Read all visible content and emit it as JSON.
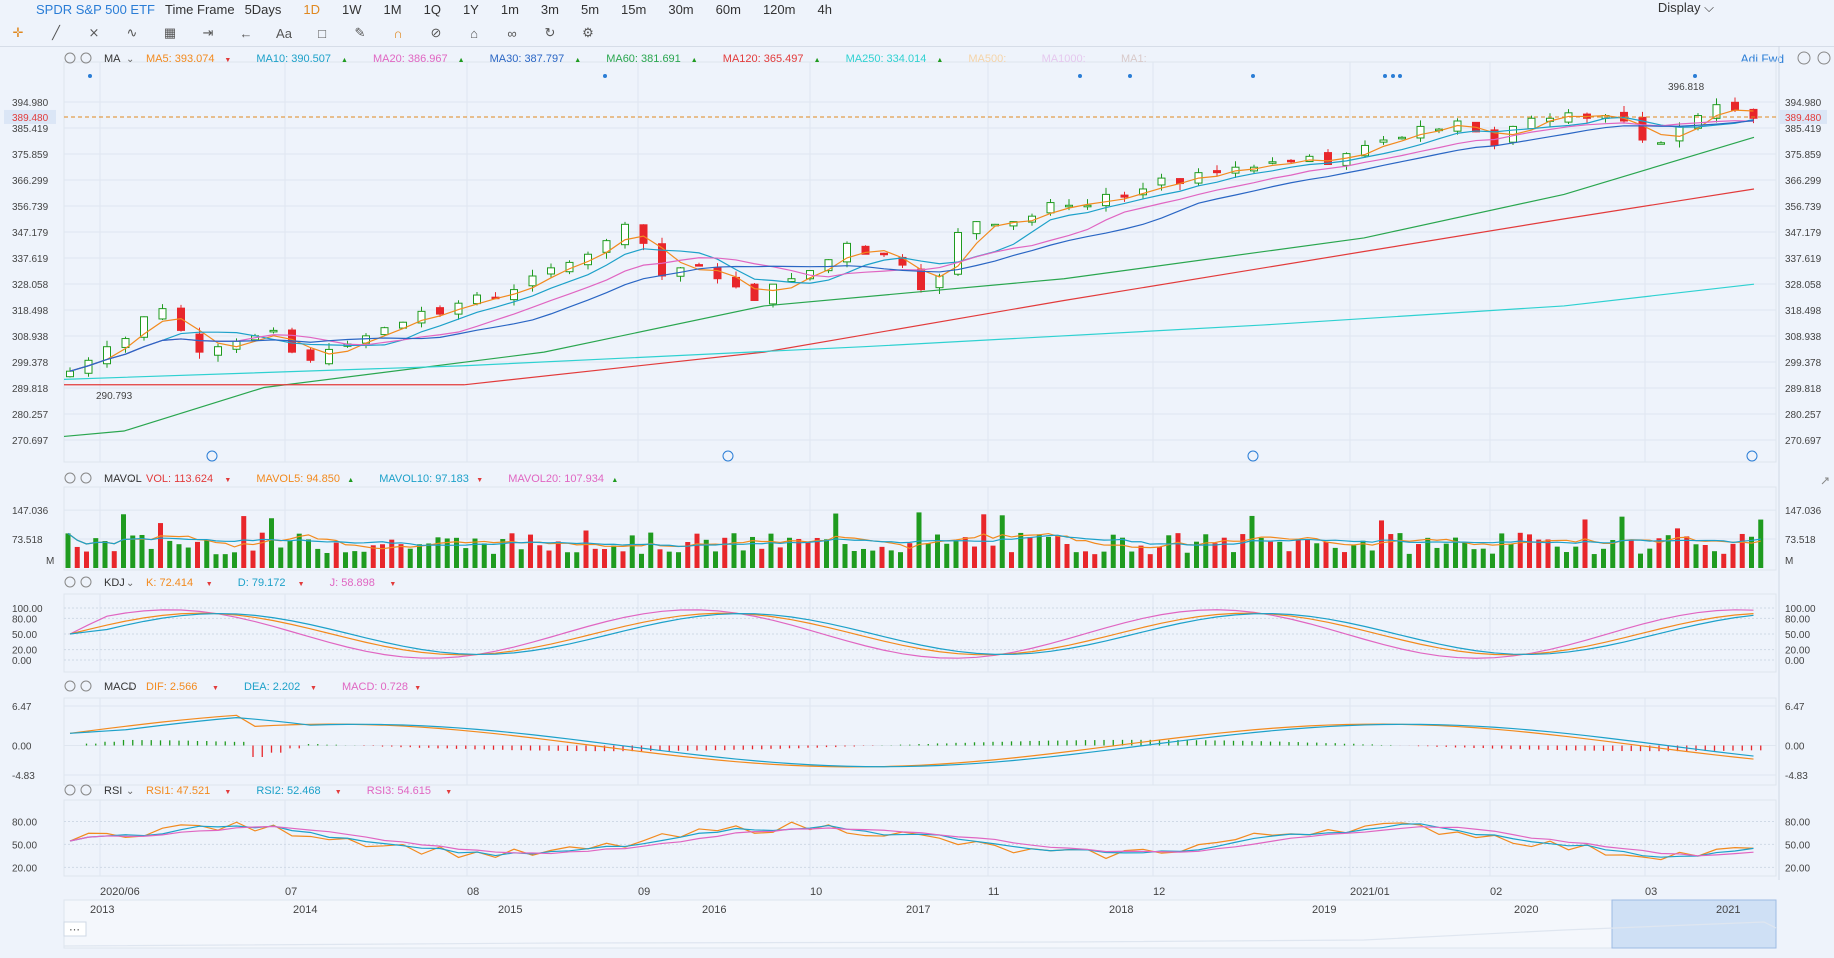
{
  "topbar": {
    "symbol": "SPDR S&P 500 ETF",
    "timeframe_label": "Time Frame",
    "intervals": [
      "5Days",
      "1D",
      "1W",
      "1M",
      "1Q",
      "1Y",
      "1m",
      "3m",
      "5m",
      "15m",
      "30m",
      "60m",
      "120m",
      "4h"
    ],
    "active_interval": "1D",
    "display_label": "Display"
  },
  "toolbar": {
    "font_label": "Aa"
  },
  "main_panel": {
    "indicator": "MA",
    "adj_label": "Adj Fwd",
    "ma": [
      {
        "label": "MA5: 393.074",
        "color": "#f28a1e",
        "dir": "down"
      },
      {
        "label": "MA10: 390.507",
        "color": "#1da1c9",
        "dir": "up"
      },
      {
        "label": "MA20: 386.967",
        "color": "#e066c2",
        "dir": "up"
      },
      {
        "label": "MA30: 387.797",
        "color": "#2a66c4",
        "dir": "up"
      },
      {
        "label": "MA60: 381.691",
        "color": "#2aa64f",
        "dir": "up"
      },
      {
        "label": "MA120: 365.497",
        "color": "#e23b3b",
        "dir": "up"
      },
      {
        "label": "MA250: 334.014",
        "color": "#2fd1d1",
        "dir": "up"
      },
      {
        "label": "MA500:",
        "color": "#f5d4a8",
        "dir": ""
      },
      {
        "label": "MA1000:",
        "color": "#e5c8ee",
        "dir": ""
      },
      {
        "label": "MA1:",
        "color": "#d8c9c9",
        "dir": ""
      }
    ],
    "high_marker": "396.818",
    "low_marker": "290.793",
    "current_price": "389.480",
    "y_ticks": [
      "394.980",
      "385.419",
      "375.859",
      "366.299",
      "356.739",
      "347.179",
      "337.619",
      "328.058",
      "318.498",
      "308.938",
      "299.378",
      "289.818",
      "280.257",
      "270.697"
    ]
  },
  "volume_panel": {
    "indicator": "MAVOL",
    "fields": [
      {
        "label": "VOL: 113.624",
        "color": "#e23b3b",
        "dir": "down"
      },
      {
        "label": "MAVOL5: 94.850",
        "color": "#f28a1e",
        "dir": "up"
      },
      {
        "label": "MAVOL10: 97.183",
        "color": "#1da1c9",
        "dir": "down"
      },
      {
        "label": "MAVOL20: 107.934",
        "color": "#e066c2",
        "dir": "up"
      }
    ],
    "y_ticks": [
      "147.036",
      "73.518"
    ],
    "unit": "M"
  },
  "kdj_panel": {
    "indicator": "KDJ",
    "fields": [
      {
        "label": "K: 72.414",
        "color": "#f28a1e",
        "dir": "down"
      },
      {
        "label": "D: 79.172",
        "color": "#1da1c9",
        "dir": "down"
      },
      {
        "label": "J: 58.898",
        "color": "#e066c2",
        "dir": "down"
      }
    ],
    "y_ticks": [
      "100.00",
      "80.00",
      "50.00",
      "20.00",
      "0.00"
    ]
  },
  "macd_panel": {
    "indicator": "MACD",
    "fields": [
      {
        "label": "DIF: 2.566",
        "color": "#f28a1e",
        "dir": "down"
      },
      {
        "label": "DEA: 2.202",
        "color": "#1da1c9",
        "dir": "down"
      },
      {
        "label": "MACD: 0.728",
        "color": "#e066c2",
        "dir": "down"
      }
    ],
    "y_ticks": [
      "6.47",
      "0.00",
      "-4.83"
    ]
  },
  "rsi_panel": {
    "indicator": "RSI",
    "fields": [
      {
        "label": "RSI1: 47.521",
        "color": "#f28a1e",
        "dir": "down"
      },
      {
        "label": "RSI2: 52.468",
        "color": "#1da1c9",
        "dir": "down"
      },
      {
        "label": "RSI3: 54.615",
        "color": "#e066c2",
        "dir": "down"
      }
    ],
    "y_ticks": [
      "80.00",
      "50.00",
      "20.00"
    ]
  },
  "x_axis_labels": [
    "2020/06",
    "07",
    "08",
    "09",
    "10",
    "11",
    "12",
    "2021/01",
    "02",
    "03"
  ],
  "navigator_years": [
    "2013",
    "2014",
    "2015",
    "2016",
    "2017",
    "2018",
    "2019",
    "2020",
    "2021"
  ],
  "colors": {
    "up": "#e8262b",
    "down": "#1f9b1f",
    "grid": "#d7e0ec",
    "bg": "#eef3fb",
    "price_line": "#e0881f"
  },
  "chart_data": {
    "type": "candlestick",
    "title": "SPDR S&P 500 ETF",
    "x_range": [
      "2020/06",
      "2021/03"
    ],
    "ylim": [
      270.697,
      394.98
    ],
    "close_path": [
      296,
      300,
      305,
      308,
      316,
      319,
      311,
      303,
      305,
      307,
      309,
      311,
      303,
      300,
      304,
      306,
      309,
      312,
      314,
      318,
      317,
      321,
      324,
      323,
      326,
      331,
      334,
      336,
      339,
      344,
      350,
      343,
      331,
      334,
      335,
      330,
      327,
      322,
      328,
      330,
      333,
      337,
      343,
      339,
      339,
      335,
      326,
      331,
      347,
      351,
      350,
      351,
      353,
      358,
      357,
      357,
      361,
      360,
      363,
      367,
      365,
      369,
      369,
      371,
      371,
      373,
      373,
      375,
      372,
      376,
      379,
      381,
      382,
      386,
      385,
      388,
      384,
      379,
      386,
      389,
      389,
      391,
      389,
      390,
      388,
      381,
      380,
      386,
      390,
      394,
      392,
      389
    ],
    "series": [
      {
        "name": "MA5",
        "color": "#f28a1e"
      },
      {
        "name": "MA10",
        "color": "#1da1c9"
      },
      {
        "name": "MA20",
        "color": "#e066c2"
      },
      {
        "name": "MA30",
        "color": "#2a66c4"
      },
      {
        "name": "MA60",
        "color": "#2aa64f"
      },
      {
        "name": "MA120",
        "color": "#e23b3b"
      },
      {
        "name": "MA250",
        "color": "#2fd1d1"
      }
    ]
  }
}
